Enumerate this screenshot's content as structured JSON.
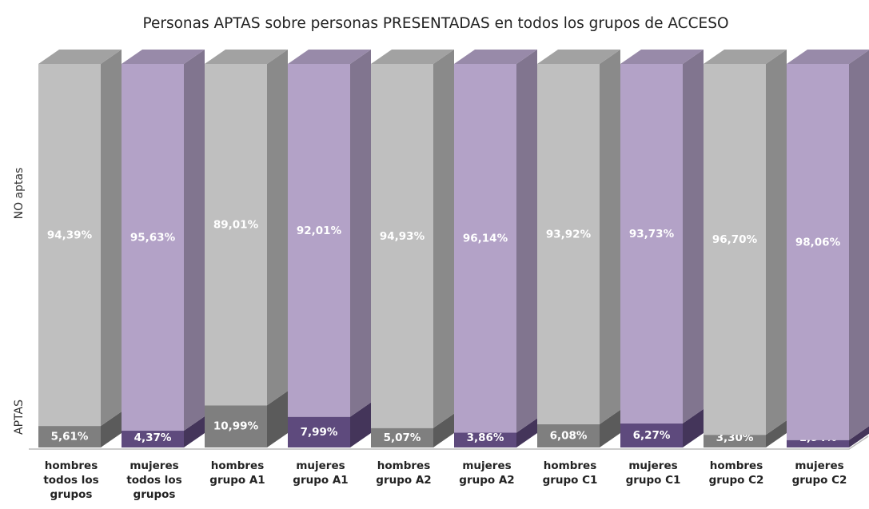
{
  "chart_data": {
    "type": "stacked-bar-3d",
    "title": "Personas APTAS sobre personas PRESENTADAS en todos los grupos de ACCESO",
    "categories": [
      "hombres todos los grupos",
      "mujeres todos los grupos",
      "hombres grupo A1",
      "mujeres grupo A1",
      "hombres grupo A2",
      "mujeres grupo A2",
      "hombres grupo C1",
      "mujeres grupo C1",
      "hombres grupo C2",
      "mujeres grupo C2"
    ],
    "series": [
      {
        "name": "APTAS",
        "colors": [
          "#7f7f7f",
          "#5e4a7d",
          "#7f7f7f",
          "#5e4a7d",
          "#7f7f7f",
          "#5e4a7d",
          "#7f7f7f",
          "#5e4a7d",
          "#7f7f7f",
          "#5e4a7d"
        ],
        "values": [
          5.61,
          4.37,
          10.99,
          7.99,
          5.07,
          3.86,
          6.08,
          6.27,
          3.3,
          1.94
        ],
        "value_labels": [
          "5,61%",
          "4,37%",
          "10,99%",
          "7,99%",
          "5,07%",
          "3,86%",
          "6,08%",
          "6,27%",
          "3,30%",
          "1,94%"
        ]
      },
      {
        "name": "NO aptas",
        "colors": [
          "#bfbfbf",
          "#b3a2c7",
          "#bfbfbf",
          "#b3a2c7",
          "#bfbfbf",
          "#b3a2c7",
          "#bfbfbf",
          "#b3a2c7",
          "#bfbfbf",
          "#b3a2c7"
        ],
        "values": [
          94.39,
          95.63,
          89.01,
          92.01,
          94.93,
          96.14,
          93.92,
          93.73,
          96.7,
          98.06
        ],
        "value_labels": [
          "94,39%",
          "95,63%",
          "89,01%",
          "92,01%",
          "94,93%",
          "96,14%",
          "93,92%",
          "93,73%",
          "96,70%",
          "98,06%"
        ]
      }
    ],
    "ylim": [
      0,
      100
    ]
  }
}
